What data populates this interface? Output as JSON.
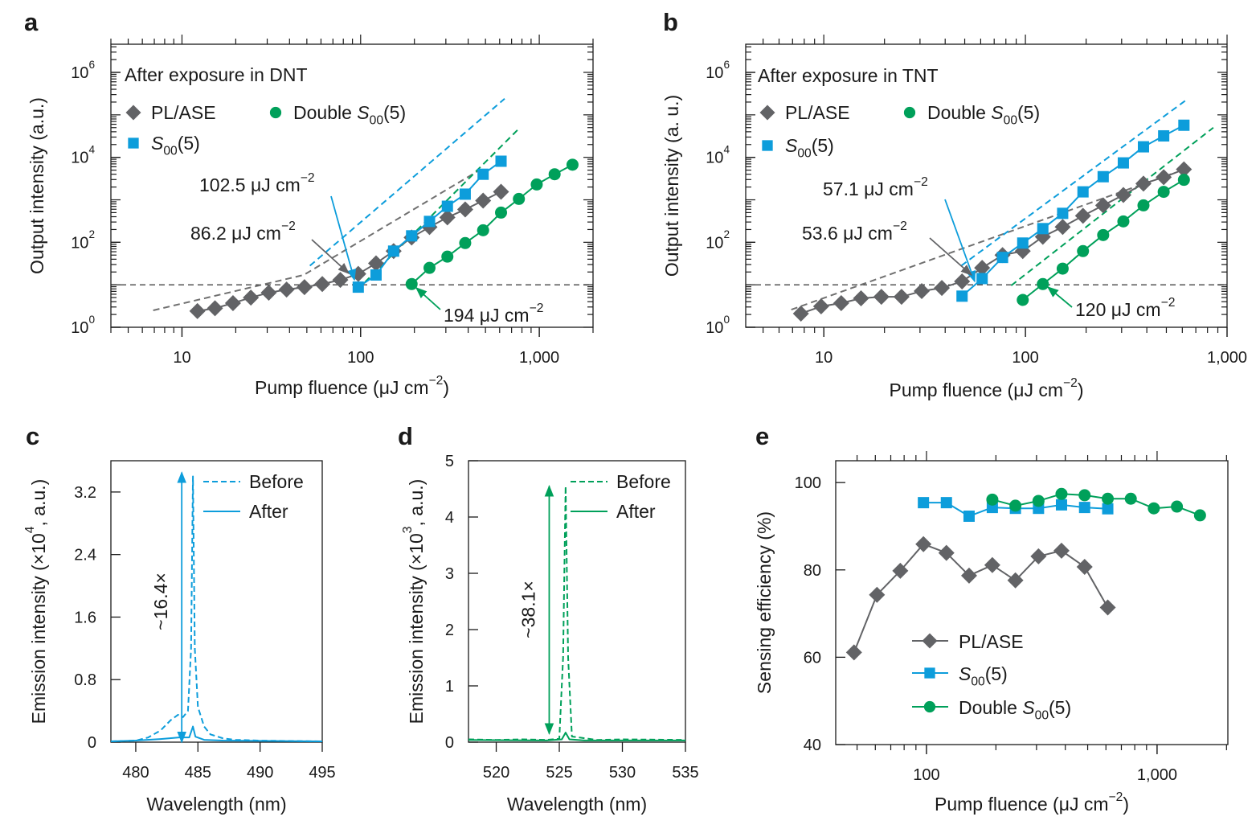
{
  "colors": {
    "pl_ase": "#626366",
    "s00": "#0d9ddb",
    "double_s00": "#00a05a",
    "fit_gray": "#707070",
    "axis": "#1a1a1a"
  },
  "chart_data": [
    {
      "panel": "a",
      "type": "scatter",
      "title": "After exposure in DNT",
      "xlabel": "Pump fluence (μJ cm^{−2})",
      "ylabel": "Output intensity (a.u.)",
      "xscale": "log",
      "yscale": "log",
      "xlim": [
        4,
        2000
      ],
      "ylim": [
        1,
        4600000
      ],
      "xticks": [
        {
          "value": 10,
          "label": "10"
        },
        {
          "value": 100,
          "label": "100"
        },
        {
          "value": 1000,
          "label": "1,000"
        }
      ],
      "yticks": [
        {
          "value": 1,
          "label": "10^{0}"
        },
        {
          "value": 100,
          "label": "10^{2}"
        },
        {
          "value": 10000,
          "label": "10^{4}"
        },
        {
          "value": 1000000,
          "label": "10^{6}"
        }
      ],
      "threshold_y": 10,
      "series": [
        {
          "name": "PL/ASE",
          "marker": "diamond",
          "color_key": "pl_ase",
          "x": [
            12.2,
            15.3,
            19.3,
            24.3,
            30.6,
            38.5,
            48.5,
            61,
            77,
            97,
            122,
            153,
            193,
            243,
            306,
            385,
            485,
            611
          ],
          "y": [
            2.4,
            2.8,
            3.7,
            5.0,
            6.5,
            7.7,
            8.8,
            10.4,
            13,
            18,
            32,
            62,
            130,
            228,
            385,
            594,
            958,
            1545
          ]
        },
        {
          "name": "*S*_{00}(5)",
          "marker": "square",
          "color_key": "s00",
          "x": [
            97,
            122,
            153,
            193,
            243,
            306,
            385,
            485,
            611
          ],
          "y": [
            8.8,
            17,
            62,
            142,
            310,
            705,
            1360,
            4000,
            8100
          ]
        },
        {
          "name": "Double *S*_{00}(5)",
          "marker": "circle",
          "color_key": "double_s00",
          "x": [
            193,
            243,
            306,
            385,
            485,
            611,
            769,
            968,
            1219,
            1535
          ],
          "y": [
            10.4,
            25,
            46,
            96,
            192,
            500,
            1050,
            2300,
            4000,
            6700
          ]
        }
      ],
      "fit_lines": [
        {
          "color_key": "fit_gray",
          "x": [
            6.9,
            48,
            455
          ],
          "y": [
            2.5,
            17,
            4800
          ]
        },
        {
          "color_key": "s00",
          "x": [
            52,
            640
          ],
          "y": [
            28,
            240000
          ]
        },
        {
          "color_key": "double_s00",
          "x": [
            96,
            764
          ],
          "y": [
            7.7,
            46000
          ]
        }
      ],
      "annotations": [
        {
          "text": "102.5 μJ cm^{−2}",
          "color_key": "s00"
        },
        {
          "text": "86.2 μJ cm^{−2}",
          "color_key": "pl_ase"
        },
        {
          "text": "194 μJ cm^{−2}",
          "color_key": "double_s00"
        }
      ]
    },
    {
      "panel": "b",
      "type": "scatter",
      "title": "After exposure in TNT",
      "xlabel": "Pump fluence (μJ cm^{−2})",
      "ylabel": "Output intensity (a. u.)",
      "xscale": "log",
      "yscale": "log",
      "xlim": [
        4.1,
        1000
      ],
      "ylim": [
        1,
        4600000
      ],
      "xticks": [
        {
          "value": 10,
          "label": "10"
        },
        {
          "value": 100,
          "label": "100"
        },
        {
          "value": 1000,
          "label": "1,000"
        }
      ],
      "yticks": [
        {
          "value": 1,
          "label": "10^{0}"
        },
        {
          "value": 100,
          "label": "10^{2}"
        },
        {
          "value": 10000,
          "label": "10^{4}"
        },
        {
          "value": 1000000,
          "label": "10^{6}"
        }
      ],
      "threshold_y": 10,
      "series": [
        {
          "name": "PL/ASE",
          "marker": "diamond",
          "color_key": "pl_ase",
          "x": [
            7.7,
            9.7,
            12.2,
            15.3,
            19.3,
            24.3,
            30.6,
            38.5,
            48.5,
            61,
            77,
            97,
            122,
            153,
            193,
            243,
            306,
            385,
            485,
            611
          ],
          "y": [
            2.1,
            3.1,
            3.7,
            4.8,
            5.2,
            5.2,
            7.1,
            8.4,
            12,
            25,
            50,
            62,
            135,
            230,
            420,
            740,
            1300,
            2400,
            3400,
            5200
          ]
        },
        {
          "name": "*S*_{00}(5)",
          "marker": "square",
          "color_key": "s00",
          "x": [
            48.5,
            61,
            77,
            97,
            122,
            153,
            193,
            243,
            306,
            385,
            485,
            611
          ],
          "y": [
            5.4,
            14,
            44,
            96,
            210,
            480,
            1540,
            3500,
            7400,
            17700,
            32000,
            57000
          ]
        },
        {
          "name": "Double *S*_{00}(5)",
          "marker": "circle",
          "color_key": "double_s00",
          "x": [
            97,
            122,
            153,
            193,
            243,
            306,
            385,
            485,
            611
          ],
          "y": [
            4.4,
            10.4,
            24,
            62,
            148,
            310,
            740,
            1540,
            2950
          ]
        }
      ],
      "fit_lines": [
        {
          "color_key": "fit_gray",
          "x": [
            6.9,
            540
          ],
          "y": [
            2.6,
            4200
          ]
        },
        {
          "color_key": "s00",
          "x": [
            48,
            640
          ],
          "y": [
            28,
            240000
          ]
        },
        {
          "color_key": "double_s00",
          "x": [
            85,
            855
          ],
          "y": [
            9.6,
            50000
          ]
        }
      ],
      "annotations": [
        {
          "text": "57.1 μJ cm^{−2}",
          "color_key": "s00"
        },
        {
          "text": "53.6 μJ cm^{−2}",
          "color_key": "pl_ase"
        },
        {
          "text": "120 μJ cm^{−2}",
          "color_key": "double_s00"
        }
      ]
    },
    {
      "panel": "c",
      "type": "line",
      "xlabel": "Wavelength (nm)",
      "ylabel": "Emission intensity (×10^{4}, a.u.)",
      "xscale": "linear",
      "yscale": "linear",
      "xlim": [
        478,
        495
      ],
      "ylim": [
        0,
        3.6
      ],
      "xticks": [
        {
          "value": 480,
          "label": "480"
        },
        {
          "value": 485,
          "label": "485"
        },
        {
          "value": 490,
          "label": "490"
        },
        {
          "value": 495,
          "label": "495"
        }
      ],
      "yticks": [
        {
          "value": 0,
          "label": "0"
        },
        {
          "value": 0.8,
          "label": "0.8"
        },
        {
          "value": 1.6,
          "label": "1.6"
        },
        {
          "value": 2.4,
          "label": "2.4"
        },
        {
          "value": 3.2,
          "label": "3.2"
        }
      ],
      "series": [
        {
          "name": "Before",
          "style": "dashed",
          "color_key": "s00",
          "x": [
            478,
            480,
            481,
            482,
            482.8,
            483.4,
            483.8,
            484.2,
            484.45,
            484.6,
            484.75,
            485,
            485.5,
            486,
            487,
            488,
            490,
            495
          ],
          "y": [
            0.01,
            0.02,
            0.06,
            0.15,
            0.28,
            0.35,
            0.32,
            0.4,
            1.2,
            3.4,
            1.2,
            0.45,
            0.2,
            0.1,
            0.05,
            0.03,
            0.02,
            0.01
          ]
        },
        {
          "name": "After",
          "style": "solid",
          "color_key": "s00",
          "x": [
            478,
            480,
            482,
            483.5,
            484.3,
            484.6,
            484.8,
            485.5,
            487,
            495
          ],
          "y": [
            0.01,
            0.02,
            0.04,
            0.06,
            0.06,
            0.2,
            0.07,
            0.03,
            0.02,
            0.01
          ]
        }
      ],
      "ratio_arrow": {
        "label": "~16.4×",
        "x": 483.7,
        "y_from": 0.0,
        "y_to": 3.45,
        "color_key": "s00"
      }
    },
    {
      "panel": "d",
      "type": "line",
      "xlabel": "Wavelength (nm)",
      "ylabel": "Emission intensity (×10^{3}, a.u.)",
      "xscale": "linear",
      "yscale": "linear",
      "xlim": [
        517.8,
        535
      ],
      "ylim": [
        0,
        5
      ],
      "xticks": [
        {
          "value": 520,
          "label": "520"
        },
        {
          "value": 525,
          "label": "525"
        },
        {
          "value": 530,
          "label": "530"
        },
        {
          "value": 535,
          "label": "535"
        }
      ],
      "yticks": [
        {
          "value": 0,
          "label": "0"
        },
        {
          "value": 1,
          "label": "1"
        },
        {
          "value": 2,
          "label": "2"
        },
        {
          "value": 3,
          "label": "3"
        },
        {
          "value": 4,
          "label": "4"
        },
        {
          "value": 5,
          "label": "5"
        }
      ],
      "series": [
        {
          "name": "Before",
          "style": "dashed",
          "color_key": "double_s00",
          "x": [
            517.8,
            520,
            522,
            524,
            525,
            525.3,
            525.5,
            525.7,
            526,
            528,
            530,
            535
          ],
          "y": [
            0.05,
            0.04,
            0.05,
            0.04,
            0.06,
            1.5,
            4.55,
            1.5,
            0.1,
            0.04,
            0.05,
            0.04
          ]
        },
        {
          "name": "After",
          "style": "solid",
          "color_key": "double_s00",
          "x": [
            517.8,
            524,
            525.2,
            525.5,
            525.8,
            527,
            535
          ],
          "y": [
            0.04,
            0.03,
            0.05,
            0.17,
            0.05,
            0.03,
            0.03
          ]
        }
      ],
      "ratio_arrow": {
        "label": "~38.1×",
        "x": 524.2,
        "y_from": 0.15,
        "y_to": 4.55,
        "color_key": "double_s00"
      }
    },
    {
      "panel": "e",
      "type": "line",
      "xlabel": "Pump fluence (μJ cm^{−2})",
      "ylabel": "Sensing efficiency (%)",
      "xscale": "log",
      "yscale": "linear",
      "xlim": [
        40.4,
        2027
      ],
      "ylim": [
        40,
        105
      ],
      "xticks": [
        {
          "value": 100,
          "label": "100"
        },
        {
          "value": 1000,
          "label": "1,000"
        }
      ],
      "yticks": [
        {
          "value": 40,
          "label": "40"
        },
        {
          "value": 60,
          "label": "60"
        },
        {
          "value": 80,
          "label": "80"
        },
        {
          "value": 100,
          "label": "100"
        }
      ],
      "series": [
        {
          "name": "PL/ASE",
          "marker": "diamond",
          "color_key": "pl_ase",
          "x": [
            48.5,
            61,
            77,
            97,
            122,
            153,
            193,
            243,
            306,
            385,
            485,
            611
          ],
          "y": [
            61.1,
            74.3,
            79.8,
            85.9,
            83.9,
            78.7,
            81.1,
            77.6,
            83.1,
            84.4,
            80.7,
            71.4
          ]
        },
        {
          "name": "*S*_{00}(5)",
          "marker": "square",
          "color_key": "s00",
          "x": [
            97,
            122,
            153,
            193,
            243,
            306,
            385,
            485,
            611
          ],
          "y": [
            95.4,
            95.4,
            92.3,
            94.3,
            94.1,
            94.1,
            94.9,
            94.3,
            94.0
          ]
        },
        {
          "name": "Double *S*_{00}(5)",
          "marker": "circle",
          "color_key": "double_s00",
          "x": [
            193,
            243,
            306,
            385,
            485,
            611,
            769,
            968,
            1219,
            1535
          ],
          "y": [
            96.1,
            94.7,
            95.8,
            97.4,
            97.1,
            96.3,
            96.3,
            94.1,
            94.5,
            92.5
          ]
        }
      ]
    }
  ]
}
